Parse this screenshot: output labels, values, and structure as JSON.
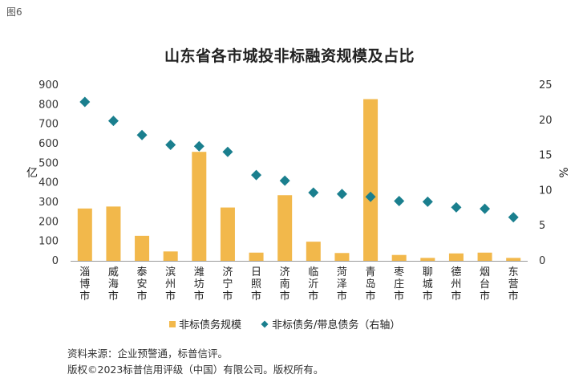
{
  "figure_label": "图6",
  "source": "资料来源：企业预警通，标普信评。",
  "copyright": "版权©2023标普信用评级（中国）有限公司。版权所有。",
  "colors": {
    "bar": "#F2B84B",
    "marker": "#1A7F8E",
    "axis": "#999999"
  },
  "chart_data": {
    "type": "bar",
    "title": "山东省各市城投非标融资规模及占比",
    "categories": [
      "淄博市",
      "威海市",
      "泰安市",
      "滨州市",
      "潍坊市",
      "济宁市",
      "日照市",
      "济南市",
      "临沂市",
      "菏泽市",
      "青岛市",
      "枣庄市",
      "聊城市",
      "德州市",
      "烟台市",
      "东营市"
    ],
    "series": [
      {
        "name": "非标债务规模",
        "axis": "left",
        "kind": "bar",
        "values": [
          268,
          278,
          128,
          48,
          558,
          273,
          42,
          336,
          98,
          40,
          828,
          30,
          15,
          38,
          42,
          15
        ]
      },
      {
        "name": "非标债务/带息债务（右轴）",
        "axis": "right",
        "kind": "scatter",
        "values": [
          22.6,
          19.9,
          17.9,
          16.5,
          16.3,
          15.5,
          12.2,
          11.4,
          9.7,
          9.5,
          9.1,
          8.5,
          8.4,
          7.6,
          7.4,
          6.2
        ]
      }
    ],
    "ylabel": "亿",
    "y2label": "%",
    "ylim": [
      0,
      900
    ],
    "y2lim": [
      0,
      25
    ],
    "yticks": [
      "0",
      "100",
      "200",
      "300",
      "400",
      "500",
      "600",
      "700",
      "800",
      "900"
    ],
    "y2ticks": [
      "0",
      "5",
      "10",
      "15",
      "20",
      "25"
    ],
    "legend_position": "bottom",
    "grid": false
  }
}
